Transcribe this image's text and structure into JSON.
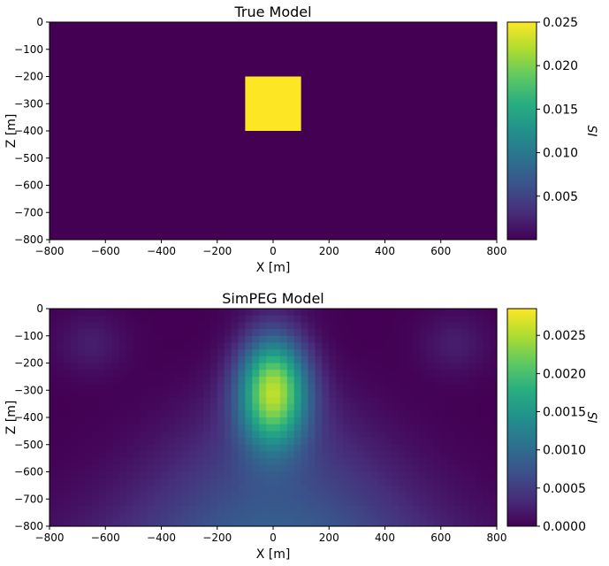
{
  "chart_data": [
    {
      "type": "heatmap",
      "title": "True Model",
      "xlabel": "X [m]",
      "ylabel": "Z [m]",
      "xlim": [
        -800,
        800
      ],
      "ylim": [
        -800,
        0
      ],
      "xticks": [
        "−800",
        "−600",
        "−400",
        "−200",
        "0",
        "200",
        "400",
        "600",
        "800"
      ],
      "yticks": [
        "0",
        "−100",
        "−200",
        "−300",
        "−400",
        "−500",
        "−600",
        "−700",
        "−800"
      ],
      "colormap": "viridis",
      "background_value": 0.0,
      "anomaly": {
        "x": [
          -100,
          100
        ],
        "z": [
          -400,
          -200
        ],
        "value": 0.025
      },
      "colorbar": {
        "label": "SI",
        "range": [
          0.0,
          0.025
        ],
        "ticks": [
          "0.025",
          "0.020",
          "0.015",
          "0.010",
          "0.005"
        ]
      }
    },
    {
      "type": "heatmap",
      "title": "SimPEG Model",
      "xlabel": "X [m]",
      "ylabel": "Z [m]",
      "xlim": [
        -800,
        800
      ],
      "ylim": [
        -800,
        0
      ],
      "xticks": [
        "−800",
        "−600",
        "−400",
        "−200",
        "0",
        "200",
        "400",
        "600",
        "800"
      ],
      "yticks": [
        "0",
        "−100",
        "−200",
        "−300",
        "−400",
        "−500",
        "−600",
        "−700",
        "−800"
      ],
      "colormap": "viridis",
      "peak": {
        "x": 0,
        "z": -300,
        "value": 0.00285
      },
      "colorbar": {
        "label": "SI",
        "range": [
          0.0,
          0.00285
        ],
        "ticks": [
          "0.0025",
          "0.0020",
          "0.0015",
          "0.0010",
          "0.0005",
          "0.0000"
        ]
      }
    }
  ]
}
